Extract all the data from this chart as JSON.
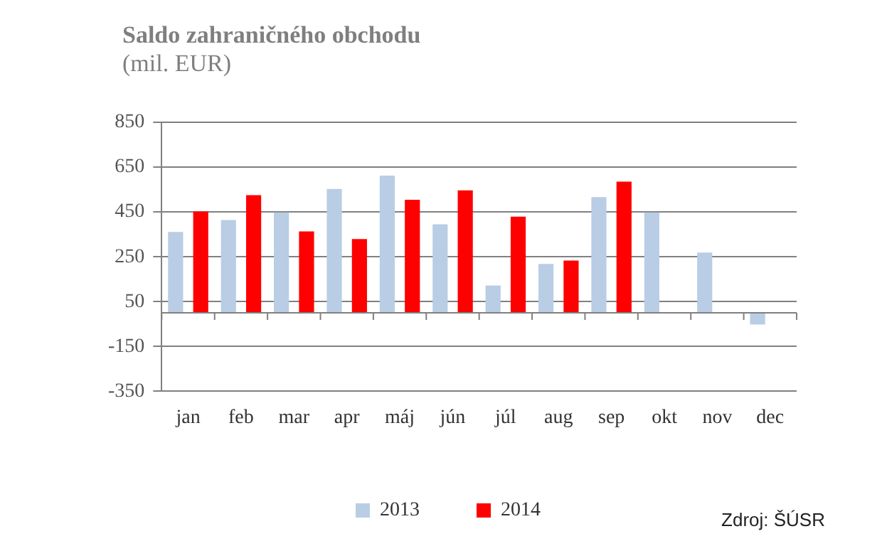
{
  "chart_data": {
    "type": "bar",
    "title": "Saldo zahraničného obchodu",
    "subtitle": "(mil. EUR)",
    "categories": [
      "jan",
      "feb",
      "mar",
      "apr",
      "máj",
      "jún",
      "júl",
      "aug",
      "sep",
      "okt",
      "nov",
      "dec"
    ],
    "series": [
      {
        "name": "2013",
        "color": "#b9cde5",
        "values": [
          361,
          414,
          448,
          553,
          612,
          395,
          122,
          218,
          516,
          448,
          269,
          -52
        ]
      },
      {
        "name": "2014",
        "color": "#ff0000",
        "values": [
          452,
          525,
          363,
          329,
          504,
          546,
          429,
          233,
          585,
          null,
          null,
          null
        ]
      }
    ],
    "ylim": [
      -350,
      850
    ],
    "yticks": [
      -350,
      -150,
      50,
      250,
      450,
      650,
      850
    ],
    "grid": "y",
    "legend": "bottom",
    "annotations": [
      "Zdroj: ŠÚSR"
    ]
  }
}
